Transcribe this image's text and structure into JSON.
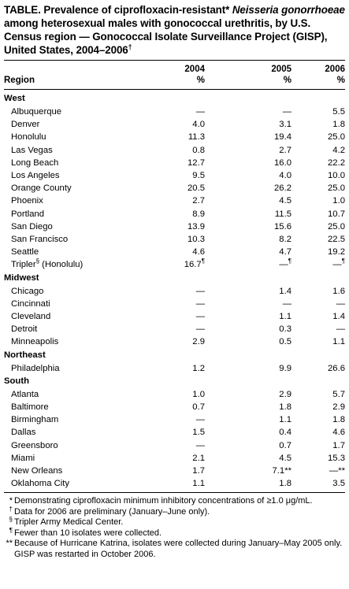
{
  "title": {
    "prefix": "TABLE. Prevalence of ciprofloxacin-resistant*",
    "organism": "Neisseria gonorrhoeae",
    "rest": "among heterosexual males with gonococcal urethritis, by U.S. Census region — Gonococcal Isolate Surveillance Project (GISP), United States, 2004–2006",
    "mark": "†"
  },
  "header": {
    "region": "Region",
    "years": [
      "2004",
      "2005",
      "2006"
    ],
    "unit": "%"
  },
  "regions": [
    {
      "name": "West",
      "rows": [
        {
          "name": "Albuquerque",
          "v": [
            "—",
            "—",
            "5.5"
          ]
        },
        {
          "name": "Denver",
          "v": [
            "4.0",
            "3.1",
            "1.8"
          ]
        },
        {
          "name": "Honolulu",
          "v": [
            "11.3",
            "19.4",
            "25.0"
          ]
        },
        {
          "name": "Las Vegas",
          "v": [
            "0.8",
            "2.7",
            "4.2"
          ]
        },
        {
          "name": "Long Beach",
          "v": [
            "12.7",
            "16.0",
            "22.2"
          ]
        },
        {
          "name": "Los Angeles",
          "v": [
            "9.5",
            "4.0",
            "10.0"
          ]
        },
        {
          "name": "Orange County",
          "v": [
            "20.5",
            "26.2",
            "25.0"
          ]
        },
        {
          "name": "Phoenix",
          "v": [
            "2.7",
            "4.5",
            "1.0"
          ]
        },
        {
          "name": "Portland",
          "v": [
            "8.9",
            "11.5",
            "10.7"
          ]
        },
        {
          "name": "San Diego",
          "v": [
            "13.9",
            "15.6",
            "25.0"
          ]
        },
        {
          "name": "San Francisco",
          "v": [
            "10.3",
            "8.2",
            "22.5"
          ]
        },
        {
          "name": "Seattle",
          "v": [
            "4.6",
            "4.7",
            "19.2"
          ]
        },
        {
          "name": "Tripler",
          "name_mark": "§",
          "name_suffix": " (Honolulu)",
          "v": [
            "16.7",
            "—",
            "—"
          ],
          "m": [
            "¶",
            "¶",
            "¶"
          ]
        }
      ]
    },
    {
      "name": "Midwest",
      "rows": [
        {
          "name": "Chicago",
          "v": [
            "—",
            "1.4",
            "1.6"
          ]
        },
        {
          "name": "Cincinnati",
          "v": [
            "—",
            "—",
            "—"
          ]
        },
        {
          "name": "Cleveland",
          "v": [
            "—",
            "1.1",
            "1.4"
          ]
        },
        {
          "name": "Detroit",
          "v": [
            "—",
            "0.3",
            "—"
          ]
        },
        {
          "name": "Minneapolis",
          "v": [
            "2.9",
            "0.5",
            "1.1"
          ]
        }
      ]
    },
    {
      "name": "Northeast",
      "rows": [
        {
          "name": "Philadelphia",
          "v": [
            "1.2",
            "9.9",
            "26.6"
          ]
        }
      ]
    },
    {
      "name": "South",
      "rows": [
        {
          "name": "Atlanta",
          "v": [
            "1.0",
            "2.9",
            "5.7"
          ]
        },
        {
          "name": "Baltimore",
          "v": [
            "0.7",
            "1.8",
            "2.9"
          ]
        },
        {
          "name": "Birmingham",
          "v": [
            "—",
            "1.1",
            "1.8"
          ]
        },
        {
          "name": "Dallas",
          "v": [
            "1.5",
            "0.4",
            "4.6"
          ]
        },
        {
          "name": "Greensboro",
          "v": [
            "—",
            "0.7",
            "1.7"
          ]
        },
        {
          "name": "Miami",
          "v": [
            "2.1",
            "4.5",
            "15.3"
          ]
        },
        {
          "name": "New Orleans",
          "v": [
            "1.7",
            "7.1**",
            "—**"
          ]
        },
        {
          "name": "Oklahoma City",
          "v": [
            "1.1",
            "1.8",
            "3.5"
          ]
        }
      ]
    }
  ],
  "footnotes": [
    {
      "mark": "*",
      "text": "Demonstrating ciprofloxacin minimum inhibitory concentrations of ≥1.0 μg/mL."
    },
    {
      "mark": "†",
      "text": "Data for 2006 are preliminary (January–June only)."
    },
    {
      "mark": "§",
      "text": "Tripler Army Medical Center."
    },
    {
      "mark": "¶",
      "text": "Fewer than 10 isolates were collected."
    },
    {
      "mark": "**",
      "text": "Because of Hurricane Katrina, isolates were collected during January–May 2005 only. GISP was restarted in October 2006."
    }
  ]
}
